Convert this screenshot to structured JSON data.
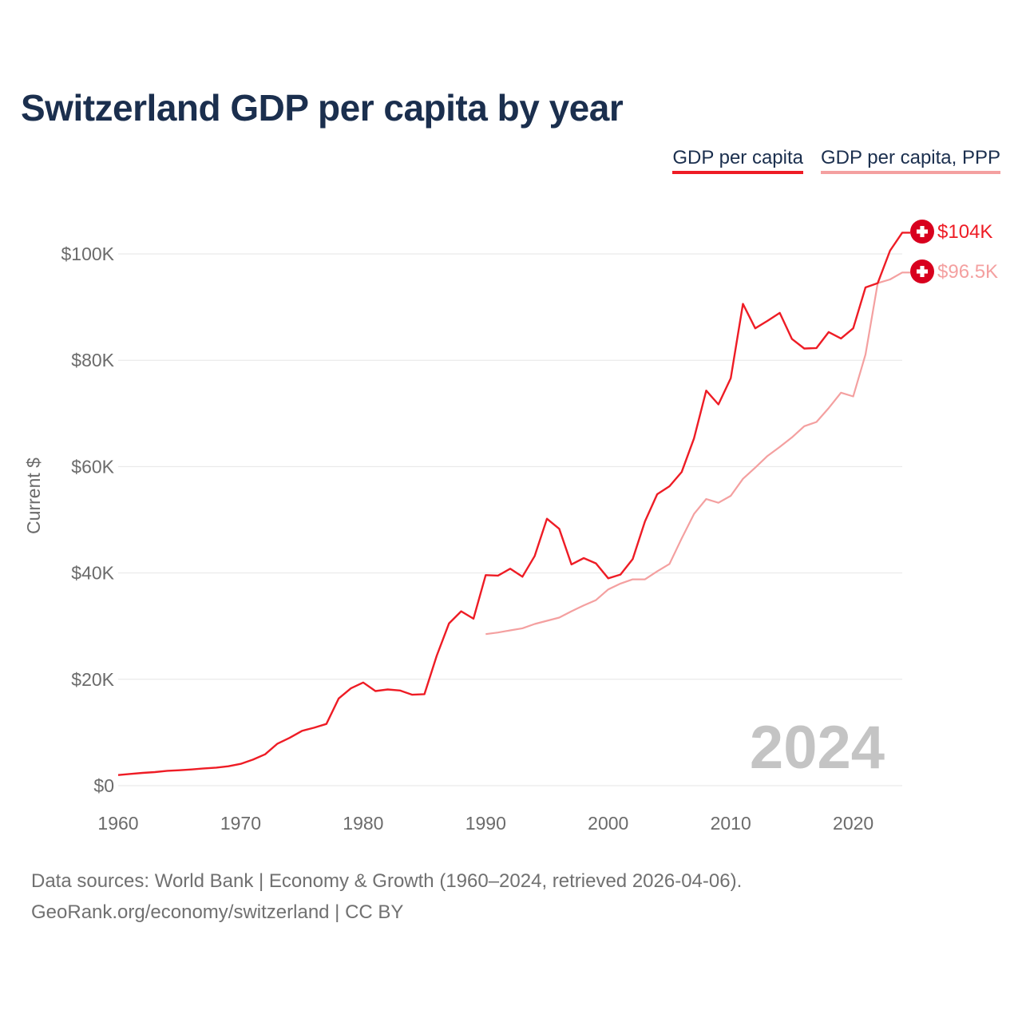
{
  "page": {
    "footer_line1": "Data sources: World Bank | Economy & Growth (1960–2024, retrieved 2026-04-06).",
    "footer_line2": "GeoRank.org/economy/switzerland | CC BY",
    "flag_icon": "swiss-flag-icon"
  },
  "chart_data": {
    "type": "line",
    "title": "Switzerland GDP per capita by year",
    "xlabel": "",
    "ylabel": "Current $",
    "xlim": [
      1960,
      2024
    ],
    "ylim": [
      0,
      100000
    ],
    "x_ticks": [
      1960,
      1970,
      1980,
      1990,
      2000,
      2010,
      2020
    ],
    "x_tick_labels": [
      "1960",
      "1970",
      "1980",
      "1990",
      "2000",
      "2010",
      "2020"
    ],
    "y_ticks": [
      0,
      20000,
      40000,
      60000,
      80000,
      100000
    ],
    "y_tick_labels": [
      "$0",
      "$20K",
      "$40K",
      "$60K",
      "$80K",
      "$100K"
    ],
    "grid": true,
    "legend_position": "top-right",
    "watermark_year": "2024",
    "series": [
      {
        "name": "GDP per capita",
        "color": "#ee1c25",
        "end_label": "$104K",
        "points": [
          [
            1960,
            2000
          ],
          [
            1961,
            2200
          ],
          [
            1962,
            2400
          ],
          [
            1963,
            2550
          ],
          [
            1964,
            2800
          ],
          [
            1965,
            2900
          ],
          [
            1966,
            3050
          ],
          [
            1967,
            3250
          ],
          [
            1968,
            3400
          ],
          [
            1969,
            3650
          ],
          [
            1970,
            4100
          ],
          [
            1971,
            4900
          ],
          [
            1972,
            5900
          ],
          [
            1973,
            7900
          ],
          [
            1974,
            9000
          ],
          [
            1975,
            10300
          ],
          [
            1976,
            10900
          ],
          [
            1977,
            11600
          ],
          [
            1978,
            16400
          ],
          [
            1979,
            18300
          ],
          [
            1980,
            19400
          ],
          [
            1981,
            17800
          ],
          [
            1982,
            18100
          ],
          [
            1983,
            17900
          ],
          [
            1984,
            17100
          ],
          [
            1985,
            17200
          ],
          [
            1986,
            24400
          ],
          [
            1987,
            30500
          ],
          [
            1988,
            32800
          ],
          [
            1989,
            31400
          ],
          [
            1990,
            39600
          ],
          [
            1991,
            39500
          ],
          [
            1992,
            40800
          ],
          [
            1993,
            39300
          ],
          [
            1994,
            43200
          ],
          [
            1995,
            50200
          ],
          [
            1996,
            48300
          ],
          [
            1997,
            41600
          ],
          [
            1998,
            42800
          ],
          [
            1999,
            41800
          ],
          [
            2000,
            39000
          ],
          [
            2001,
            39700
          ],
          [
            2002,
            42600
          ],
          [
            2003,
            49700
          ],
          [
            2004,
            54800
          ],
          [
            2005,
            56300
          ],
          [
            2006,
            59000
          ],
          [
            2007,
            65300
          ],
          [
            2008,
            74300
          ],
          [
            2009,
            71700
          ],
          [
            2010,
            76600
          ],
          [
            2011,
            90600
          ],
          [
            2012,
            86000
          ],
          [
            2013,
            87400
          ],
          [
            2014,
            88900
          ],
          [
            2015,
            84000
          ],
          [
            2016,
            82200
          ],
          [
            2017,
            82300
          ],
          [
            2018,
            85300
          ],
          [
            2019,
            84100
          ],
          [
            2020,
            86000
          ],
          [
            2021,
            93700
          ],
          [
            2022,
            94500
          ],
          [
            2023,
            100600
          ],
          [
            2024,
            104000
          ]
        ]
      },
      {
        "name": "GDP per capita, PPP",
        "color": "#f4a0a0",
        "end_label": "$96.5K",
        "points": [
          [
            1990,
            28500
          ],
          [
            1991,
            28800
          ],
          [
            1992,
            29200
          ],
          [
            1993,
            29600
          ],
          [
            1994,
            30400
          ],
          [
            1995,
            31000
          ],
          [
            1996,
            31600
          ],
          [
            1997,
            32800
          ],
          [
            1998,
            33900
          ],
          [
            1999,
            34900
          ],
          [
            2000,
            36900
          ],
          [
            2001,
            38000
          ],
          [
            2002,
            38800
          ],
          [
            2003,
            38800
          ],
          [
            2004,
            40300
          ],
          [
            2005,
            41700
          ],
          [
            2006,
            46500
          ],
          [
            2007,
            51100
          ],
          [
            2008,
            53900
          ],
          [
            2009,
            53200
          ],
          [
            2010,
            54500
          ],
          [
            2011,
            57700
          ],
          [
            2012,
            59800
          ],
          [
            2013,
            62000
          ],
          [
            2014,
            63700
          ],
          [
            2015,
            65500
          ],
          [
            2016,
            67600
          ],
          [
            2017,
            68400
          ],
          [
            2018,
            71000
          ],
          [
            2019,
            73900
          ],
          [
            2020,
            73200
          ],
          [
            2021,
            81100
          ],
          [
            2022,
            94500
          ],
          [
            2023,
            95200
          ],
          [
            2024,
            96500
          ]
        ]
      }
    ]
  }
}
